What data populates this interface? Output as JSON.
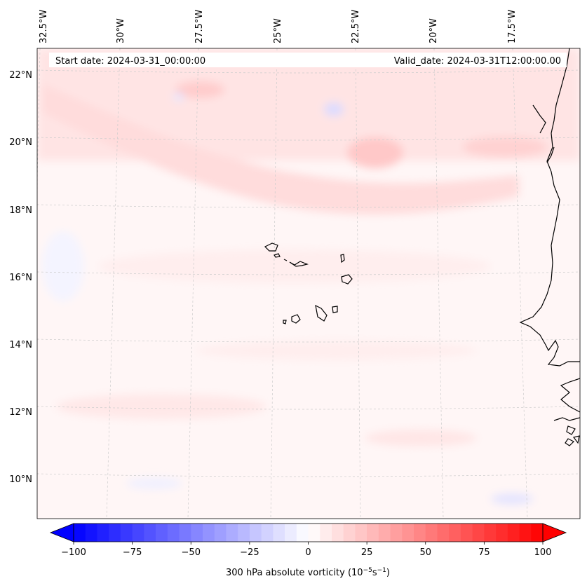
{
  "header": {
    "start_date": "Start date: 2024-03-31_00:00:00",
    "valid_date": "Valid_date: 2024-03-31T12:00:00.00"
  },
  "lon_labels": [
    "32.5°W",
    "30°W",
    "27.5°W",
    "25°W",
    "22.5°W",
    "20°W",
    "17.5°W"
  ],
  "lat_labels": [
    "22°N",
    "20°N",
    "18°N",
    "16°N",
    "14°N",
    "12°N",
    "10°N"
  ],
  "colorbar": {
    "label": "300 hPa absolute vorticity (10",
    "label_exp1": "−5",
    "label_mid": "s",
    "label_exp2": "−1",
    "label_end": ")",
    "ticks": [
      "−100",
      "−75",
      "−50",
      "−25",
      "0",
      "25",
      "50",
      "75",
      "100"
    ],
    "min": -100,
    "max": 100,
    "step": 5,
    "colormap": "bwr",
    "low_color": "#0000ff",
    "mid_color": "#ffffff",
    "high_color": "#ff0000"
  },
  "map": {
    "coastline_color": "#000000",
    "gridline_color": "#c8c8c8",
    "gridlines": true
  }
}
